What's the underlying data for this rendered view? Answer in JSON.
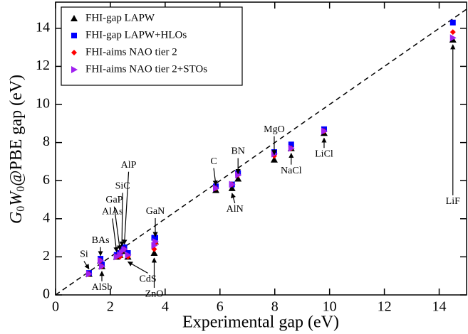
{
  "chart_data": {
    "type": "scatter",
    "x_label": "Experimental gap  (eV)",
    "y_label_parts": [
      "G",
      "0",
      "W",
      "0",
      "@PBE gap (eV)"
    ],
    "x": [
      1.22,
      1.64,
      1.69,
      2.23,
      2.35,
      2.42,
      2.51,
      2.64,
      3.64,
      3.6,
      5.85,
      6.44,
      6.66,
      7.98,
      8.6,
      9.8,
      14.5
    ],
    "point_labels": [
      "Si",
      "BAs",
      "AlSb",
      "AlAs",
      "GaP",
      "SiC",
      "AlP",
      "CdS",
      "GaN",
      "ZnO",
      "C",
      "AlN",
      "BN",
      "MgO",
      "NaCl",
      "LiCl",
      "LiF"
    ],
    "series": [
      {
        "name": "FHI-gap LAPW",
        "color": "#000000",
        "marker": "triangle-up",
        "values": [
          1.1,
          1.8,
          1.5,
          2.0,
          2.1,
          2.3,
          2.4,
          2.0,
          2.8,
          2.2,
          5.5,
          5.6,
          6.1,
          7.1,
          7.7,
          8.5,
          13.4
        ]
      },
      {
        "name": "FHI-gap LAPW+HLOs",
        "color": "#0000ff",
        "marker": "square",
        "values": [
          1.15,
          1.9,
          1.6,
          2.1,
          2.2,
          2.4,
          2.5,
          2.2,
          3.0,
          3.0,
          5.7,
          5.8,
          6.4,
          7.5,
          7.9,
          8.7,
          14.3
        ]
      },
      {
        "name": "FHI-aims NAO tier 2",
        "color": "#ff0000",
        "marker": "diamond",
        "values": [
          1.1,
          1.8,
          1.5,
          2.0,
          2.0,
          2.3,
          2.4,
          2.0,
          2.7,
          2.4,
          5.6,
          5.8,
          6.3,
          7.3,
          7.7,
          8.6,
          13.8
        ]
      },
      {
        "name": "FHI-aims NAO tier 2+STOs",
        "color": "#a020f0",
        "marker": "triangle-right",
        "values": [
          1.1,
          1.8,
          1.5,
          2.0,
          2.1,
          2.3,
          2.4,
          2.1,
          2.8,
          2.6,
          5.6,
          5.8,
          6.3,
          7.4,
          7.7,
          8.6,
          13.5
        ]
      }
    ],
    "xlim": [
      0,
      15
    ],
    "ylim": [
      0,
      15
    ],
    "xticks": [
      0,
      2,
      4,
      6,
      8,
      10,
      12,
      14
    ],
    "yticks": [
      0,
      2,
      4,
      6,
      8,
      10,
      12,
      14
    ],
    "legend": "upper left"
  }
}
